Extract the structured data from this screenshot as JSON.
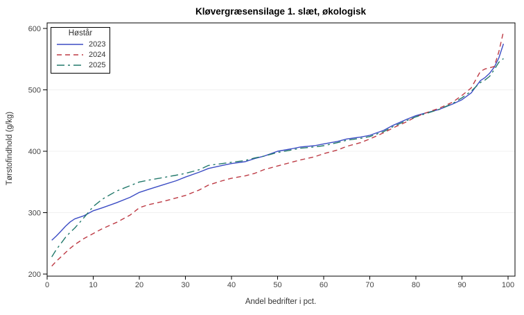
{
  "chart_data": {
    "type": "line",
    "title": "Kløvergræsensilage 1. slæt, økologisk",
    "xlabel": "Andel bedrifter i pct.",
    "ylabel": "Tørstofindhold (g/kg)",
    "xlim": [
      0,
      100
    ],
    "ylim": [
      200,
      600
    ],
    "x_ticks": [
      0,
      10,
      20,
      30,
      40,
      50,
      60,
      70,
      80,
      90,
      100
    ],
    "y_ticks": [
      200,
      300,
      400,
      500,
      600
    ],
    "grid": "horizontal-only",
    "grid_color": "#f0f0f0",
    "frame_color": "#000000",
    "tick_label_color": "#444444",
    "axis_label_color": "#333333",
    "legend": {
      "title": "Høstår",
      "position": "top-left-inside"
    },
    "x": [
      1,
      2,
      3,
      4,
      5,
      6,
      8,
      10,
      12,
      15,
      18,
      20,
      22,
      25,
      28,
      30,
      33,
      35,
      38,
      40,
      43,
      45,
      47,
      50,
      53,
      55,
      58,
      60,
      63,
      65,
      68,
      70,
      73,
      75,
      78,
      80,
      82,
      85,
      88,
      90,
      92,
      94,
      95,
      96,
      97,
      98,
      99
    ],
    "series": [
      {
        "name": "2023",
        "color": "#3b4cc4",
        "dash": "solid",
        "values": [
          255,
          262,
          270,
          278,
          285,
          290,
          295,
          303,
          308,
          316,
          325,
          333,
          338,
          345,
          352,
          358,
          366,
          372,
          377,
          380,
          383,
          388,
          392,
          400,
          404,
          407,
          409,
          412,
          416,
          420,
          423,
          426,
          434,
          442,
          452,
          458,
          462,
          468,
          477,
          484,
          495,
          515,
          520,
          527,
          537,
          552,
          575
        ]
      },
      {
        "name": "2024",
        "color": "#bd3a44",
        "dash": "dashed",
        "values": [
          213,
          221,
          228,
          235,
          242,
          248,
          258,
          266,
          274,
          284,
          296,
          308,
          313,
          318,
          324,
          328,
          337,
          345,
          352,
          356,
          360,
          364,
          370,
          376,
          382,
          386,
          391,
          396,
          402,
          408,
          414,
          420,
          430,
          438,
          448,
          456,
          462,
          470,
          480,
          491,
          503,
          530,
          534,
          536,
          538,
          562,
          595
        ]
      },
      {
        "name": "2025",
        "color": "#22796b",
        "dash": "dash-dot",
        "values": [
          228,
          240,
          250,
          260,
          268,
          275,
          292,
          310,
          322,
          335,
          344,
          350,
          353,
          357,
          361,
          364,
          370,
          377,
          380,
          382,
          385,
          389,
          392,
          398,
          402,
          405,
          407,
          409,
          414,
          418,
          421,
          424,
          432,
          440,
          450,
          456,
          461,
          468,
          478,
          487,
          498,
          512,
          516,
          522,
          533,
          545,
          551
        ]
      }
    ]
  }
}
